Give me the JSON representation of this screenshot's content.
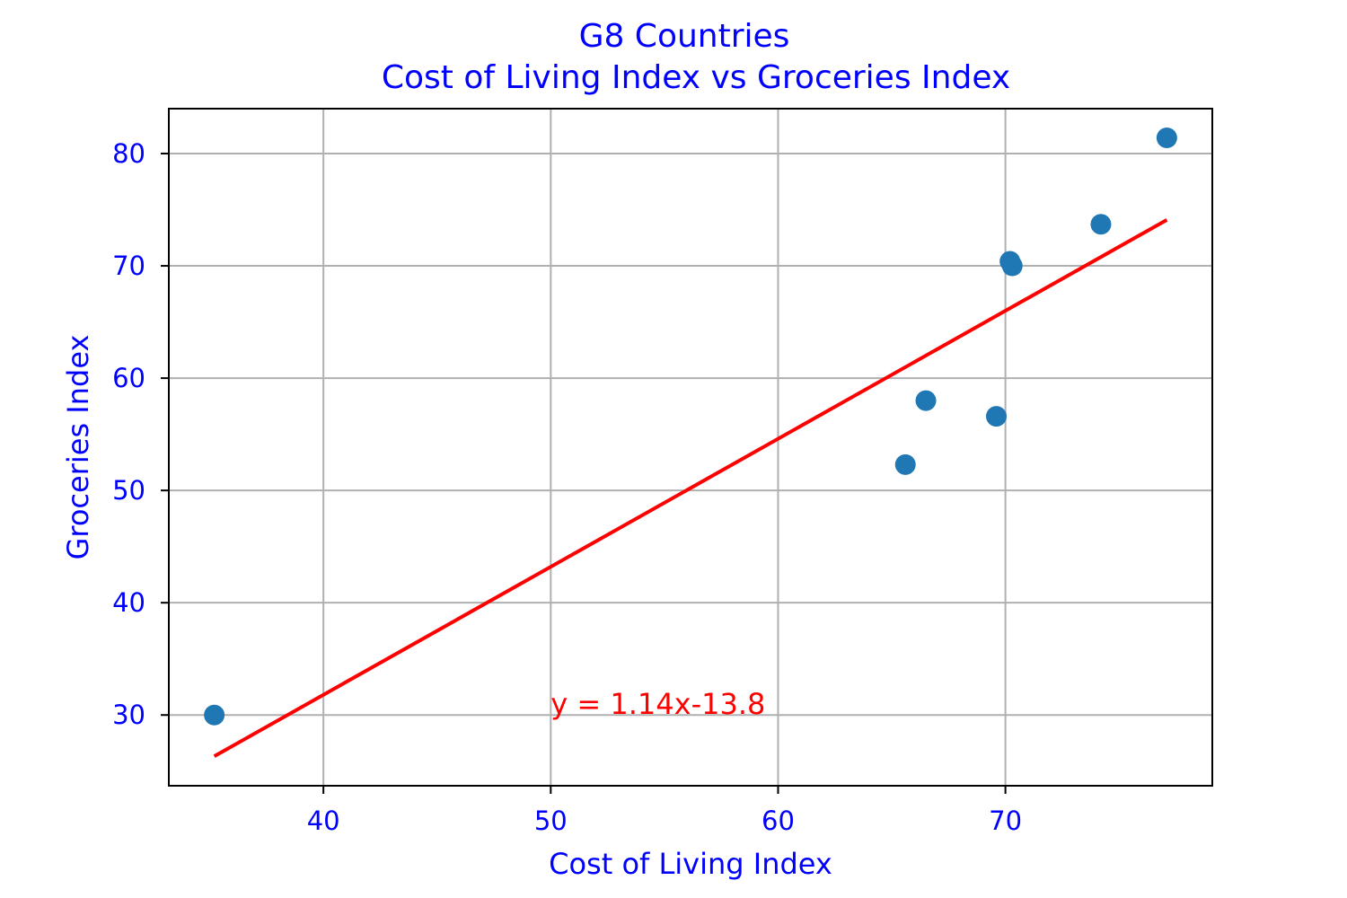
{
  "chart_data": {
    "type": "scatter",
    "title_line1": "G8 Countries",
    "title_line2": "Cost of Living Index vs Groceries Index",
    "xlabel": "Cost of Living Index",
    "ylabel": "Groceries Index",
    "xlim": [
      33.2,
      79.1
    ],
    "ylim": [
      23.7,
      84.0
    ],
    "xticks": [
      40,
      50,
      60,
      70
    ],
    "yticks": [
      30,
      40,
      50,
      60,
      70,
      80
    ],
    "grid": true,
    "points": [
      {
        "x": 35.2,
        "y": 30.0
      },
      {
        "x": 65.6,
        "y": 52.3
      },
      {
        "x": 66.5,
        "y": 58.0
      },
      {
        "x": 69.6,
        "y": 56.6
      },
      {
        "x": 70.2,
        "y": 70.4
      },
      {
        "x": 70.3,
        "y": 70.0
      },
      {
        "x": 74.2,
        "y": 73.7
      },
      {
        "x": 77.1,
        "y": 81.4
      }
    ],
    "regression": {
      "slope": 1.14,
      "intercept": -13.8,
      "x_start": 35.2,
      "x_end": 77.1,
      "label": "y = 1.14x-13.8",
      "label_x": 50,
      "label_y": 30
    },
    "colors": {
      "points": "#1f77b4",
      "line": "#ff0000",
      "text": "#0000ff",
      "annotation": "#ff0000",
      "grid": "#b0b0b0",
      "frame": "#000000"
    }
  }
}
